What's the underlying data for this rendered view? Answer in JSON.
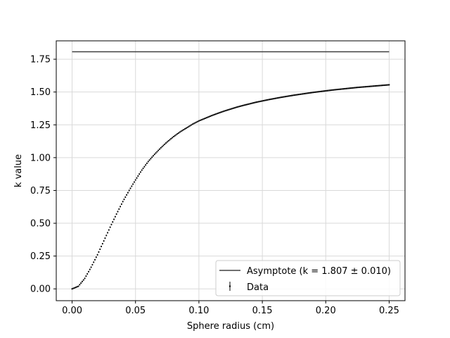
{
  "chart_data": {
    "type": "scatter",
    "xlabel": "Sphere radius (cm)",
    "ylabel": "k value",
    "xlim": [
      -0.0125,
      0.2625
    ],
    "ylim": [
      -0.09,
      1.89
    ],
    "x_ticks": [
      0.0,
      0.05,
      0.1,
      0.15,
      0.2,
      0.25
    ],
    "x_tick_labels": [
      "0.00",
      "0.05",
      "0.10",
      "0.15",
      "0.20",
      "0.25"
    ],
    "y_ticks": [
      0.0,
      0.25,
      0.5,
      0.75,
      1.0,
      1.25,
      1.5,
      1.75
    ],
    "y_tick_labels": [
      "0.00",
      "0.25",
      "0.50",
      "0.75",
      "1.00",
      "1.25",
      "1.50",
      "1.75"
    ],
    "grid": true,
    "legend_position": "bottom-right",
    "colors": {
      "asymptote": "#404040",
      "data": "#000000",
      "grid": "#d9d9d9"
    },
    "series": [
      {
        "name": "Asymptote (k = 1.807 ± 0.010)",
        "kind": "line",
        "x": [
          0.0,
          0.25
        ],
        "values": [
          1.807,
          1.807
        ]
      },
      {
        "name": "Data",
        "kind": "errorbar",
        "x": [
          0.0,
          0.005,
          0.01,
          0.015,
          0.02,
          0.025,
          0.03,
          0.035,
          0.04,
          0.045,
          0.05,
          0.055,
          0.06,
          0.065,
          0.07,
          0.075,
          0.08,
          0.085,
          0.09,
          0.095,
          0.1,
          0.105,
          0.11,
          0.115,
          0.12,
          0.125,
          0.13,
          0.135,
          0.14,
          0.145,
          0.15,
          0.155,
          0.16,
          0.165,
          0.17,
          0.175,
          0.18,
          0.185,
          0.19,
          0.195,
          0.2,
          0.205,
          0.21,
          0.215,
          0.22,
          0.225,
          0.23,
          0.235,
          0.24,
          0.245,
          0.25
        ],
        "values": [
          0.0,
          0.02,
          0.08,
          0.165,
          0.26,
          0.365,
          0.47,
          0.57,
          0.665,
          0.75,
          0.83,
          0.905,
          0.97,
          1.025,
          1.075,
          1.12,
          1.16,
          1.195,
          1.225,
          1.255,
          1.28,
          1.3,
          1.32,
          1.338,
          1.355,
          1.37,
          1.385,
          1.398,
          1.41,
          1.422,
          1.432,
          1.442,
          1.451,
          1.46,
          1.468,
          1.476,
          1.483,
          1.49,
          1.497,
          1.503,
          1.509,
          1.515,
          1.52,
          1.525,
          1.53,
          1.535,
          1.539,
          1.543,
          1.547,
          1.551,
          1.555
        ],
        "error": 0.006
      }
    ]
  }
}
